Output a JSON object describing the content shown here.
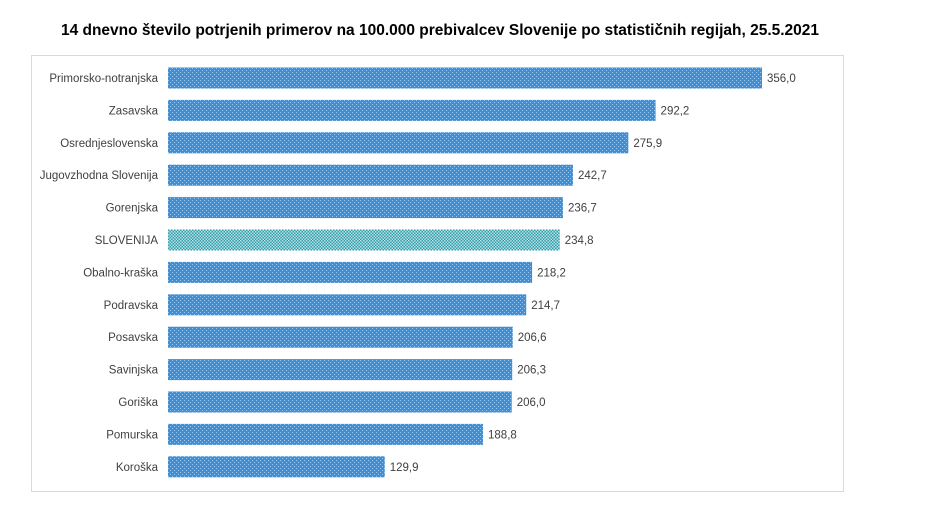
{
  "chart_data": {
    "type": "bar",
    "orientation": "horizontal",
    "title": "14 dnevno število potrjenih primerov na 100.000 prebivalcev Slovenije po statističnih regijah, 25.5.2021",
    "categories": [
      "Primorsko-notranjska",
      "Zasavska",
      "Osrednjeslovenska",
      "Jugovzhodna Slovenija",
      "Gorenjska",
      "SLOVENIJA",
      "Obalno-kraška",
      "Podravska",
      "Posavska",
      "Savinjska",
      "Goriška",
      "Pomurska",
      "Koroška"
    ],
    "values": [
      356.0,
      292.2,
      275.9,
      242.7,
      236.7,
      234.8,
      218.2,
      214.7,
      206.6,
      206.3,
      206.0,
      188.8,
      129.9
    ],
    "value_labels": [
      "356,0",
      "292,2",
      "275,9",
      "242,7",
      "236,7",
      "234,8",
      "218,2",
      "214,7",
      "206,6",
      "206,3",
      "206,0",
      "188,8",
      "129,9"
    ],
    "highlight_category": "SLOVENIJA",
    "xlim": [
      0,
      356.0
    ],
    "grid": false,
    "legend": "none",
    "colors": {
      "bar": "#3f8ed6",
      "bar_pattern": "#9ec9ef",
      "highlight": "#2f9aa8",
      "highlight_pattern": "#b8e3e8"
    }
  }
}
